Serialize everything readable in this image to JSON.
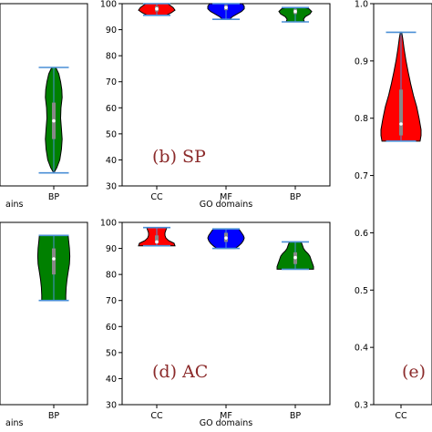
{
  "colors": {
    "CC": "#ff0000",
    "MF": "#0000ff",
    "BP": "#008000",
    "whisker": "#4a8fd6",
    "panel_label": "#8b2a2a"
  },
  "chart_data": [
    {
      "id": "a",
      "type": "violin",
      "panel_label": "",
      "xlabel": "",
      "ylabel": "",
      "ylim": [
        30,
        100
      ],
      "categories": [
        "BP"
      ],
      "category_colors": [
        "BP"
      ],
      "violins": [
        {
          "min": 35,
          "max": 75.5,
          "median": 55,
          "q1": 48,
          "q3": 62,
          "profile": [
            [
              35,
              0.0
            ],
            [
              37,
              0.15
            ],
            [
              40,
              0.3
            ],
            [
              44,
              0.38
            ],
            [
              48,
              0.42
            ],
            [
              52,
              0.38
            ],
            [
              56,
              0.34
            ],
            [
              60,
              0.36
            ],
            [
              64,
              0.42
            ],
            [
              67,
              0.4
            ],
            [
              70,
              0.34
            ],
            [
              73,
              0.25
            ],
            [
              75.5,
              0.1
            ]
          ]
        }
      ],
      "xlabel_partial": "ains"
    },
    {
      "id": "b",
      "type": "violin",
      "panel_label": "(b) SP",
      "xlabel": "GO domains",
      "ylabel": "",
      "ylim": [
        30,
        100
      ],
      "yticks": [
        30,
        40,
        50,
        60,
        70,
        80,
        90,
        100
      ],
      "categories": [
        "CC",
        "MF",
        "BP"
      ],
      "category_colors": [
        "CC",
        "MF",
        "BP"
      ],
      "violins": [
        {
          "min": 95.5,
          "max": 100,
          "median": 98,
          "q1": 97,
          "q3": 99,
          "profile": [
            [
              95.5,
              0.5
            ],
            [
              96.5,
              0.8
            ],
            [
              97.5,
              1.0
            ],
            [
              98.5,
              0.9
            ],
            [
              99.5,
              0.7
            ],
            [
              100,
              0.6
            ]
          ]
        },
        {
          "min": 94,
          "max": 100,
          "median": 98.5,
          "q1": 97.5,
          "q3": 99.5,
          "profile": [
            [
              94,
              0.2
            ],
            [
              95,
              0.35
            ],
            [
              96,
              0.6
            ],
            [
              97,
              0.85
            ],
            [
              98,
              1.0
            ],
            [
              99,
              1.0
            ],
            [
              100,
              0.9
            ]
          ]
        },
        {
          "min": 93,
          "max": 98.5,
          "median": 97,
          "q1": 96,
          "q3": 98,
          "profile": [
            [
              93,
              0.5
            ],
            [
              94,
              0.45
            ],
            [
              95,
              0.55
            ],
            [
              96,
              0.8
            ],
            [
              97,
              0.9
            ],
            [
              98,
              0.75
            ],
            [
              98.5,
              0.5
            ]
          ]
        }
      ]
    },
    {
      "id": "c",
      "type": "violin",
      "panel_label": "",
      "xlabel": "",
      "ylabel": "",
      "ylim": [
        30,
        100
      ],
      "categories": [
        "BP"
      ],
      "category_colors": [
        "BP"
      ],
      "violins": [
        {
          "min": 70,
          "max": 95,
          "median": 86,
          "q1": 80,
          "q3": 90,
          "profile": [
            [
              70,
              0.6
            ],
            [
              72,
              0.6
            ],
            [
              75,
              0.62
            ],
            [
              78,
              0.66
            ],
            [
              81,
              0.72
            ],
            [
              84,
              0.78
            ],
            [
              87,
              0.8
            ],
            [
              90,
              0.78
            ],
            [
              93,
              0.74
            ],
            [
              95,
              0.72
            ]
          ]
        }
      ],
      "xlabel_partial": "ains"
    },
    {
      "id": "d",
      "type": "violin",
      "panel_label": "(d) AC",
      "xlabel": "GO domains",
      "ylabel": "",
      "ylim": [
        30,
        100
      ],
      "yticks": [
        30,
        40,
        50,
        60,
        70,
        80,
        90,
        100
      ],
      "categories": [
        "CC",
        "MF",
        "BP"
      ],
      "category_colors": [
        "CC",
        "MF",
        "BP"
      ],
      "violins": [
        {
          "min": 91,
          "max": 98,
          "median": 92.5,
          "q1": 92,
          "q3": 95,
          "profile": [
            [
              91,
              1.0
            ],
            [
              92,
              0.95
            ],
            [
              93,
              0.65
            ],
            [
              94,
              0.5
            ],
            [
              95,
              0.45
            ],
            [
              96,
              0.45
            ],
            [
              97,
              0.5
            ],
            [
              98,
              0.55
            ]
          ]
        },
        {
          "min": 90,
          "max": 97.5,
          "median": 94,
          "q1": 92.5,
          "q3": 96,
          "profile": [
            [
              90,
              0.5
            ],
            [
              91,
              0.7
            ],
            [
              92,
              0.85
            ],
            [
              93,
              0.95
            ],
            [
              94,
              1.0
            ],
            [
              95,
              0.95
            ],
            [
              96,
              0.85
            ],
            [
              97,
              0.75
            ],
            [
              97.5,
              0.7
            ]
          ]
        },
        {
          "min": 82,
          "max": 92.5,
          "median": 86.5,
          "q1": 84,
          "q3": 88.5,
          "profile": [
            [
              82,
              1.0
            ],
            [
              83,
              1.0
            ],
            [
              84,
              0.95
            ],
            [
              85,
              0.9
            ],
            [
              86,
              0.85
            ],
            [
              87,
              0.8
            ],
            [
              88,
              0.7
            ],
            [
              89,
              0.55
            ],
            [
              90,
              0.45
            ],
            [
              91,
              0.4
            ],
            [
              92,
              0.35
            ],
            [
              92.5,
              0.3
            ]
          ]
        }
      ]
    },
    {
      "id": "e",
      "type": "violin",
      "panel_label": "(e) ",
      "xlabel": "",
      "ylabel": "",
      "ylim": [
        0.3,
        1.0
      ],
      "yticks": [
        0.3,
        0.4,
        0.5,
        0.6,
        0.7,
        0.8,
        0.9,
        1.0
      ],
      "categories": [
        "CC"
      ],
      "category_colors": [
        "CC"
      ],
      "violins": [
        {
          "min": 0.76,
          "max": 0.95,
          "median": 0.79,
          "q1": 0.77,
          "q3": 0.85,
          "profile": [
            [
              0.76,
              0.95
            ],
            [
              0.77,
              1.0
            ],
            [
              0.78,
              1.0
            ],
            [
              0.79,
              0.95
            ],
            [
              0.8,
              0.9
            ],
            [
              0.82,
              0.78
            ],
            [
              0.84,
              0.62
            ],
            [
              0.86,
              0.48
            ],
            [
              0.88,
              0.36
            ],
            [
              0.9,
              0.25
            ],
            [
              0.92,
              0.16
            ],
            [
              0.94,
              0.08
            ],
            [
              0.95,
              0.03
            ]
          ]
        }
      ]
    }
  ]
}
